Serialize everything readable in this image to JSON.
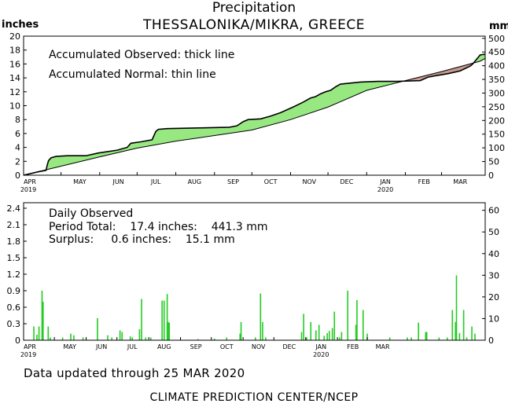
{
  "header": {
    "title": "Precipitation",
    "subtitle": "THESSALONIKA/MIKRA, GREECE",
    "unit_left": "inches",
    "unit_right": "mm"
  },
  "top_panel": {
    "note1": "Accumulated Observed: thick line",
    "note2": "Accumulated Normal: thin line"
  },
  "bottom_panel": {
    "note1": "Daily Observed",
    "note2": "Period Total:    17.4 inches:    441.3 mm",
    "note3": "Surplus:     0.6 inches:    15.1 mm"
  },
  "footer": {
    "updated": "Data updated through 25 MAR 2020",
    "agency": "CLIMATE PREDICTION CENTER/NCEP"
  },
  "colors": {
    "surplus_fill": "#98e882",
    "deficit_fill": "#c49a90",
    "daily_bar": "#22cc22",
    "line": "#000000"
  },
  "chart_data": [
    {
      "type": "area",
      "series": [
        {
          "name": "Accumulated Observed",
          "points": [
            [
              0,
              0
            ],
            [
              12,
              0.5
            ],
            [
              18,
              0.7
            ],
            [
              19,
              1.5
            ],
            [
              20,
              2.1
            ],
            [
              22,
              2.5
            ],
            [
              26,
              2.7
            ],
            [
              35,
              2.8
            ],
            [
              50,
              2.8
            ],
            [
              60,
              3.2
            ],
            [
              75,
              3.6
            ],
            [
              83,
              4.0
            ],
            [
              86,
              4.6
            ],
            [
              94,
              4.8
            ],
            [
              103,
              5.1
            ],
            [
              106,
              6.3
            ],
            [
              108,
              6.6
            ],
            [
              115,
              6.7
            ],
            [
              140,
              6.8
            ],
            [
              165,
              6.9
            ],
            [
              171,
              7.1
            ],
            [
              176,
              7.7
            ],
            [
              180,
              8.0
            ],
            [
              190,
              8.1
            ],
            [
              198,
              8.5
            ],
            [
              206,
              9.0
            ],
            [
              216,
              9.8
            ],
            [
              224,
              10.5
            ],
            [
              230,
              11.1
            ],
            [
              234,
              11.3
            ],
            [
              238,
              11.7
            ],
            [
              242,
              12.0
            ],
            [
              246,
              12.2
            ],
            [
              250,
              12.7
            ],
            [
              254,
              13.1
            ],
            [
              270,
              13.4
            ],
            [
              284,
              13.5
            ],
            [
              300,
              13.5
            ],
            [
              318,
              13.6
            ],
            [
              324,
              14.1
            ],
            [
              330,
              14.3
            ],
            [
              340,
              14.6
            ],
            [
              350,
              15.0
            ],
            [
              358,
              15.7
            ],
            [
              360,
              16.0
            ],
            [
              366,
              17.3
            ],
            [
              370,
              17.4
            ]
          ]
        },
        {
          "name": "Accumulated Normal",
          "points": [
            [
              0,
              0
            ],
            [
              30,
              1.3
            ],
            [
              60,
              2.6
            ],
            [
              91,
              3.9
            ],
            [
              122,
              4.9
            ],
            [
              153,
              5.7
            ],
            [
              183,
              6.5
            ],
            [
              214,
              8.0
            ],
            [
              244,
              9.8
            ],
            [
              275,
              12.2
            ],
            [
              306,
              13.6
            ],
            [
              335,
              14.9
            ],
            [
              366,
              16.4
            ],
            [
              370,
              16.8
            ]
          ]
        }
      ],
      "ylim_inches": [
        0,
        20
      ],
      "yticks_inches": [
        0,
        2,
        4,
        6,
        8,
        10,
        12,
        14,
        16,
        18,
        20
      ],
      "yticks_mm": [
        0,
        50,
        100,
        150,
        200,
        250,
        300,
        350,
        400,
        450,
        500
      ],
      "xlim_days": [
        0,
        370
      ]
    },
    {
      "type": "bar",
      "series": [
        {
          "name": "Daily Observed",
          "points": [
            [
              10,
              0.25
            ],
            [
              13,
              0.1
            ],
            [
              15,
              0.25
            ],
            [
              18,
              0.9
            ],
            [
              19,
              0.7
            ],
            [
              24,
              0.25
            ],
            [
              26,
              0.05
            ],
            [
              38,
              0.05
            ],
            [
              46,
              0.12
            ],
            [
              49,
              0.09
            ],
            [
              58,
              0.05
            ],
            [
              72,
              0.4
            ],
            [
              82,
              0.09
            ],
            [
              86,
              0.05
            ],
            [
              94,
              0.18
            ],
            [
              96,
              0.15
            ],
            [
              104,
              0.07
            ],
            [
              106,
              0.05
            ],
            [
              113,
              0.2
            ],
            [
              115,
              0.75
            ],
            [
              119,
              0.05
            ],
            [
              124,
              0.05
            ],
            [
              135,
              0.72
            ],
            [
              137,
              0.72
            ],
            [
              140,
              0.84
            ],
            [
              141,
              0.33
            ],
            [
              142,
              0.32
            ],
            [
              170,
              0.02
            ],
            [
              186,
              0.03
            ],
            [
              198,
              0.05
            ],
            [
              211,
              0.12
            ],
            [
              212,
              0.33
            ],
            [
              226,
              0.05
            ],
            [
              231,
              0.85
            ],
            [
              233,
              0.33
            ],
            [
              236,
              0.05
            ],
            [
              271,
              0.15
            ],
            [
              273,
              0.48
            ],
            [
              276,
              0.05
            ],
            [
              280,
              0.33
            ],
            [
              285,
              0.18
            ],
            [
              288,
              0.28
            ],
            [
              293,
              0.08
            ],
            [
              296,
              0.13
            ],
            [
              298,
              0.17
            ],
            [
              301,
              0.22
            ],
            [
              303,
              0.52
            ],
            [
              308,
              0.05
            ],
            [
              310,
              0.15
            ],
            [
              316,
              0.9
            ],
            [
              324,
              0.28
            ],
            [
              325,
              0.73
            ],
            [
              331,
              0.55
            ],
            [
              335,
              0.12
            ],
            [
              357,
              0.05
            ],
            [
              374,
              0.05
            ],
            [
              378,
              0.05
            ],
            [
              385,
              0.32
            ],
            [
              392,
              0.15
            ],
            [
              393,
              0.15
            ],
            [
              405,
              0.05
            ],
            [
              413,
              0.05
            ],
            [
              418,
              0.55
            ],
            [
              421,
              0.33
            ],
            [
              422,
              1.18
            ],
            [
              425,
              0.13
            ],
            [
              429,
              0.55
            ],
            [
              432,
              0.05
            ],
            [
              437,
              0.25
            ],
            [
              440,
              0.12
            ]
          ]
        }
      ],
      "ylim_inches": [
        0,
        2.5
      ],
      "yticks_inches": [
        "0",
        "0.3",
        "0.6",
        "0.9",
        "1.2",
        "1.5",
        "1.8",
        "2.1",
        "2.4"
      ],
      "yticks_mm": [
        0,
        10,
        20,
        30,
        40,
        50,
        60
      ],
      "xlim_days": [
        0,
        450
      ]
    }
  ],
  "x_axis": {
    "months": [
      "APR",
      "MAY",
      "JUN",
      "JUL",
      "AUG",
      "SEP",
      "OCT",
      "NOV",
      "DEC",
      "JAN",
      "FEB",
      "MAR"
    ],
    "month_start_days": [
      0,
      30,
      61,
      91,
      122,
      153,
      183,
      214,
      244,
      275,
      306,
      335
    ],
    "year_start": "2019",
    "year_mid": "2020"
  }
}
